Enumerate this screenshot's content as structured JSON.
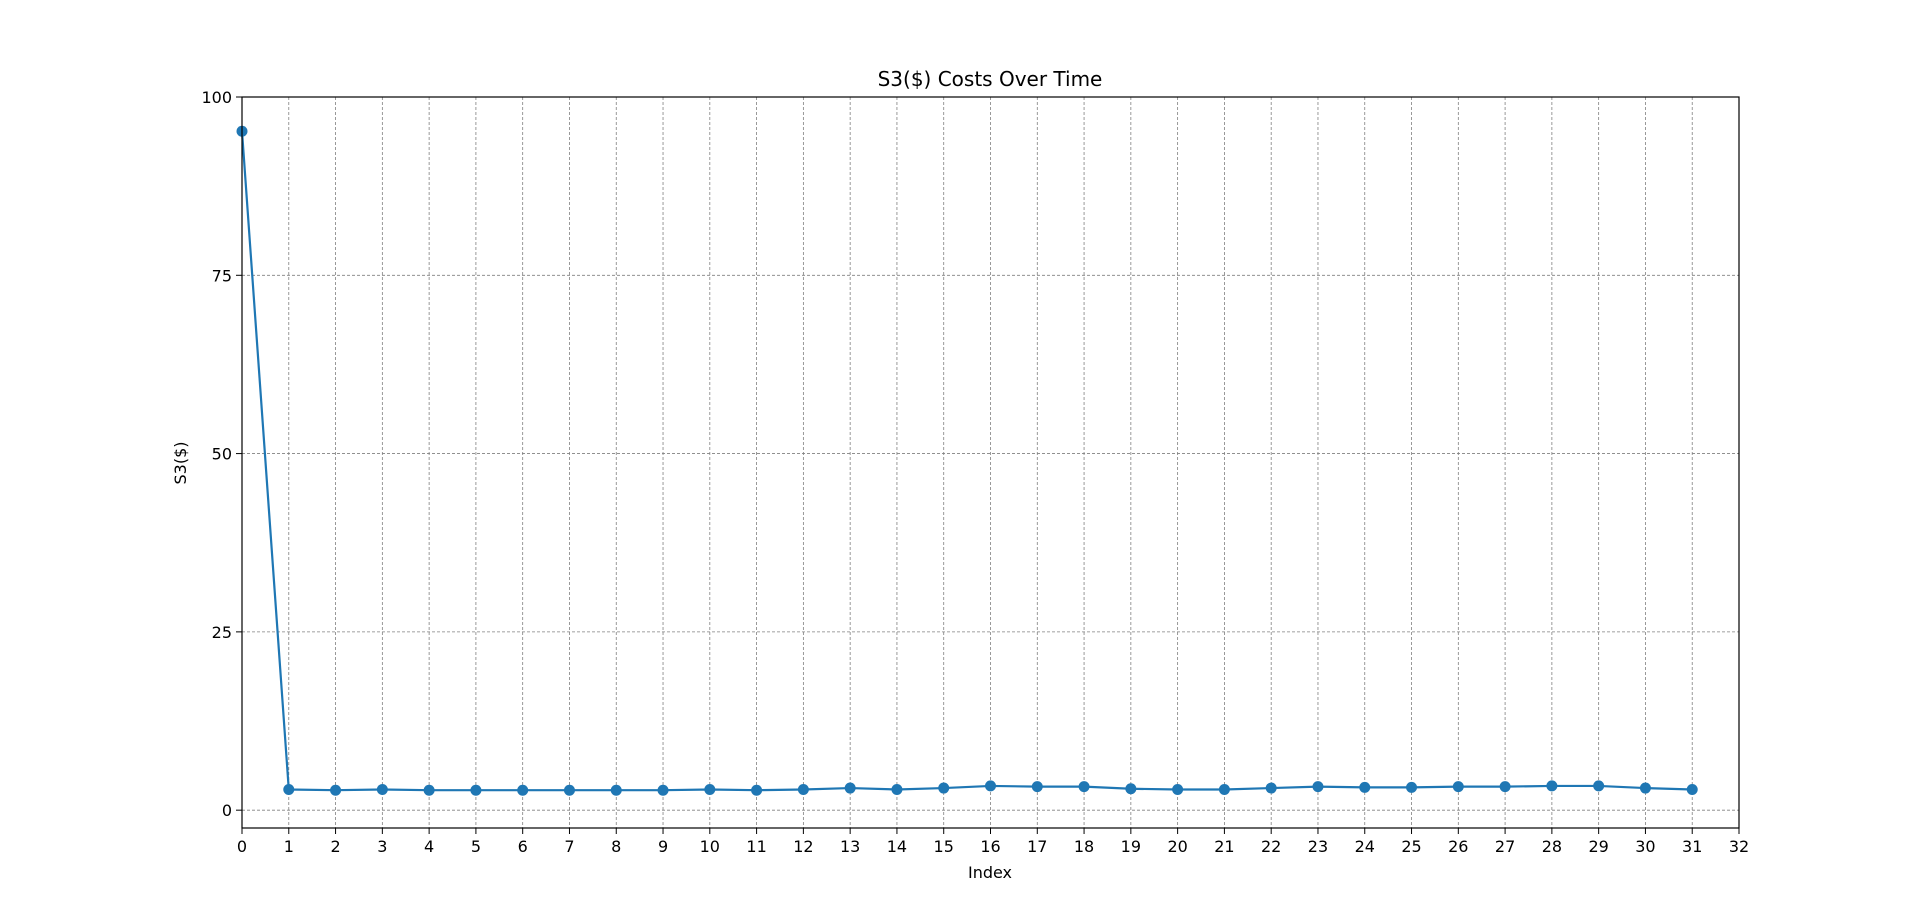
{
  "chart_data": {
    "type": "line",
    "title": "S3($) Costs Over Time",
    "xlabel": "Index",
    "ylabel": "S3($)",
    "xlim": [
      0,
      32
    ],
    "ylim": [
      -2.5,
      100
    ],
    "xticks": [
      0,
      1,
      2,
      3,
      4,
      5,
      6,
      7,
      8,
      9,
      10,
      11,
      12,
      13,
      14,
      15,
      16,
      17,
      18,
      19,
      20,
      21,
      22,
      23,
      24,
      25,
      26,
      27,
      28,
      29,
      30,
      31,
      32
    ],
    "yticks": [
      0,
      25,
      50,
      75,
      100
    ],
    "grid": true,
    "color": "#1f77b4",
    "series": [
      {
        "x": [
          0,
          1,
          2,
          3,
          4,
          5,
          6,
          7,
          8,
          9,
          10,
          11,
          12,
          13,
          14,
          15,
          16,
          17,
          18,
          19,
          20,
          21,
          22,
          23,
          24,
          25,
          26,
          27,
          28,
          29,
          30,
          31
        ],
        "values": [
          95.2,
          2.9,
          2.8,
          2.9,
          2.8,
          2.8,
          2.8,
          2.8,
          2.8,
          2.8,
          2.9,
          2.8,
          2.9,
          3.1,
          2.9,
          3.1,
          3.4,
          3.3,
          3.3,
          3.0,
          2.9,
          2.9,
          3.1,
          3.3,
          3.2,
          3.2,
          3.3,
          3.3,
          3.4,
          3.4,
          3.1,
          2.9
        ]
      }
    ]
  }
}
